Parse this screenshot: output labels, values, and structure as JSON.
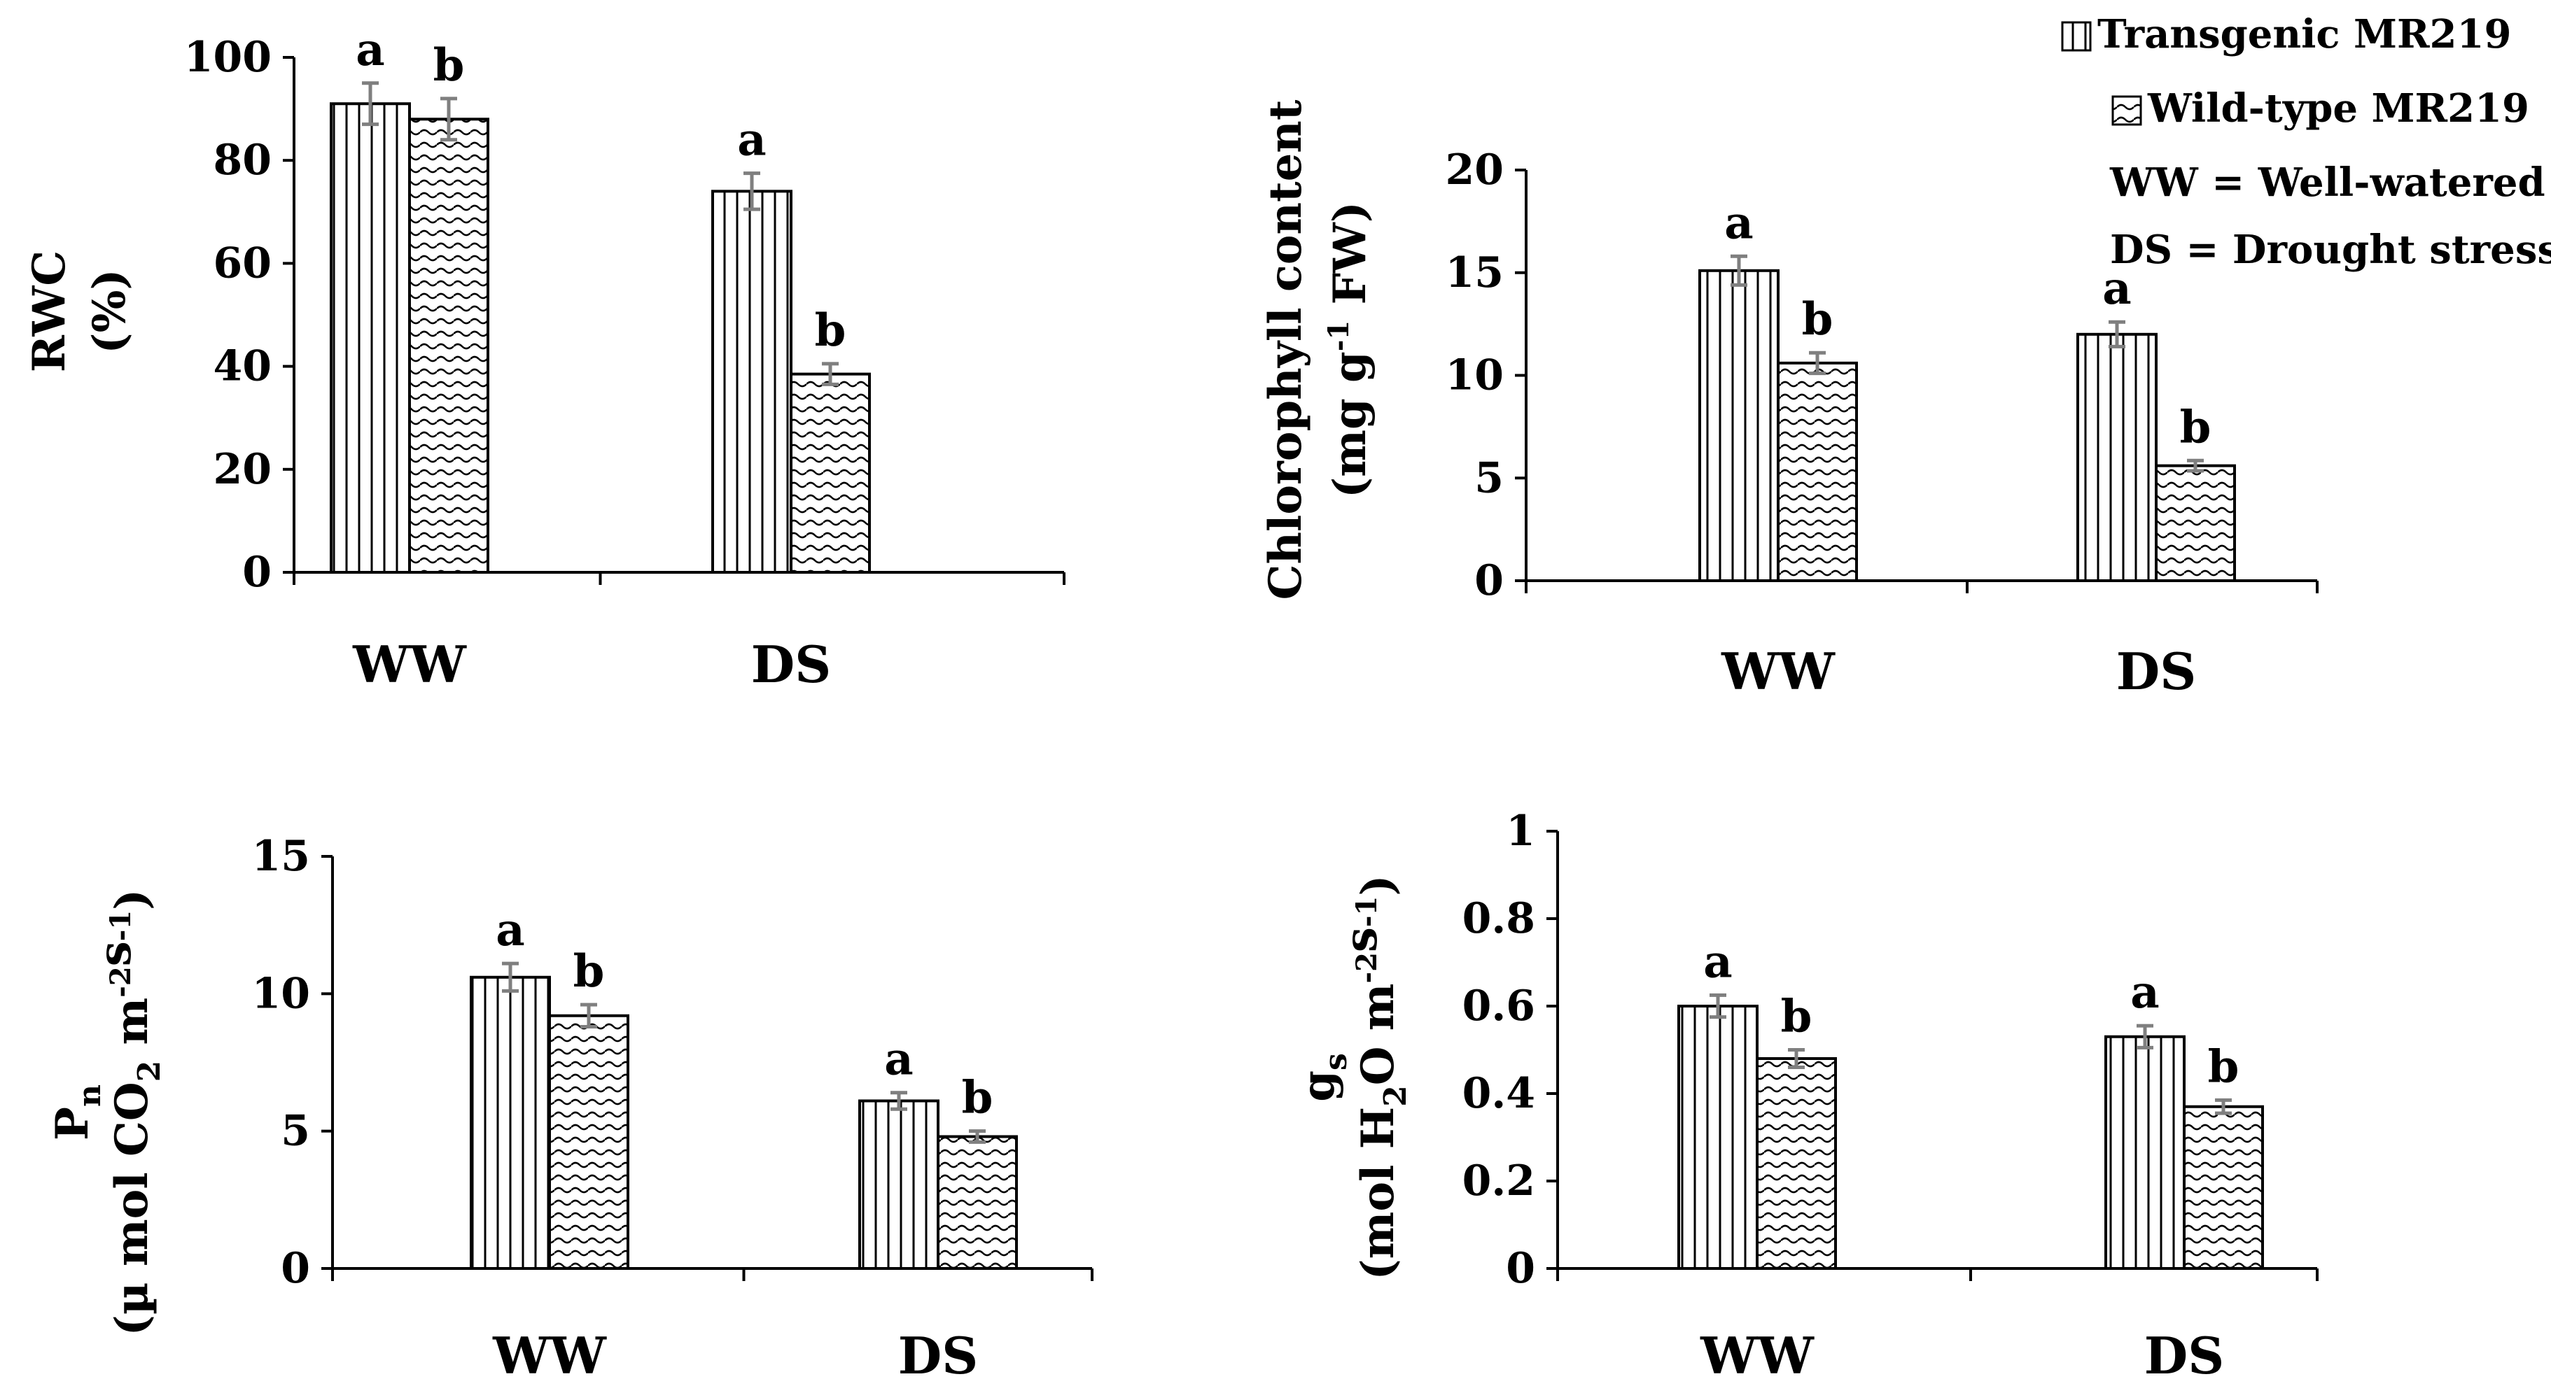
{
  "legend": {
    "series": [
      {
        "name": "Transgenic MR219",
        "pattern": "vertical-lines"
      },
      {
        "name": "Wild-type MR219",
        "pattern": "wavy"
      }
    ],
    "notes": [
      "WW = Well-watered",
      "DS = Drought stress"
    ]
  },
  "chart_data": [
    {
      "type": "bar",
      "id": "rwc",
      "categories": [
        "WW",
        "DS"
      ],
      "series": [
        {
          "name": "Transgenic MR219",
          "values": [
            91,
            74
          ],
          "errors": [
            4,
            3.5
          ],
          "letters": [
            "a",
            "a"
          ]
        },
        {
          "name": "Wild-type MR219",
          "values": [
            88,
            38.5
          ],
          "errors": [
            4,
            2
          ],
          "letters": [
            "b",
            "b"
          ]
        }
      ],
      "ylabel_lines": [
        "RWC",
        "(%)"
      ],
      "ylim": [
        0,
        100
      ],
      "yticks": [
        0,
        20,
        40,
        60,
        80,
        100
      ],
      "tick_labels": [
        "0",
        "20",
        "40",
        "60",
        "80",
        "100"
      ]
    },
    {
      "type": "bar",
      "id": "chlorophyll",
      "categories": [
        "WW",
        "DS"
      ],
      "series": [
        {
          "name": "Transgenic MR219",
          "values": [
            15.1,
            12
          ],
          "errors": [
            0.7,
            0.6
          ],
          "letters": [
            "a",
            "a"
          ]
        },
        {
          "name": "Wild-type MR219",
          "values": [
            10.6,
            5.6
          ],
          "errors": [
            0.5,
            0.25
          ],
          "letters": [
            "b",
            "b"
          ]
        }
      ],
      "ylabel_lines": [
        "Chlorophyll content",
        "(mg g-1 FW)"
      ],
      "ylim": [
        0,
        20
      ],
      "yticks": [
        0,
        5,
        10,
        15,
        20
      ],
      "tick_labels": [
        "0",
        "5",
        "10",
        "15",
        "20"
      ]
    },
    {
      "type": "bar",
      "id": "pn",
      "categories": [
        "WW",
        "DS"
      ],
      "series": [
        {
          "name": "Transgenic MR219",
          "values": [
            10.6,
            6.1
          ],
          "errors": [
            0.5,
            0.3
          ],
          "letters": [
            "a",
            "a"
          ]
        },
        {
          "name": "Wild-type MR219",
          "values": [
            9.2,
            4.8
          ],
          "errors": [
            0.4,
            0.2
          ],
          "letters": [
            "b",
            "b"
          ]
        }
      ],
      "ylabel_lines": [
        "Pn",
        "(µ mol CO2 m-2s-1)"
      ],
      "ylim": [
        0,
        15
      ],
      "yticks": [
        0,
        5,
        10,
        15
      ],
      "tick_labels": [
        "0",
        "5",
        "10",
        "15"
      ]
    },
    {
      "type": "bar",
      "id": "gs",
      "categories": [
        "WW",
        "DS"
      ],
      "series": [
        {
          "name": "Transgenic MR219",
          "values": [
            0.6,
            0.53
          ],
          "errors": [
            0.025,
            0.025
          ],
          "letters": [
            "a",
            "a"
          ]
        },
        {
          "name": "Wild-type MR219",
          "values": [
            0.48,
            0.37
          ],
          "errors": [
            0.02,
            0.015
          ],
          "letters": [
            "b",
            "b"
          ]
        }
      ],
      "ylabel_lines": [
        "gs",
        "(mol H2O m-2s-1)"
      ],
      "ylim": [
        0,
        1
      ],
      "yticks": [
        0,
        0.2,
        0.4,
        0.6,
        0.8,
        1
      ],
      "tick_labels": [
        "0",
        "0.2",
        "0.4",
        "0.6",
        "0.8",
        "1"
      ]
    }
  ]
}
